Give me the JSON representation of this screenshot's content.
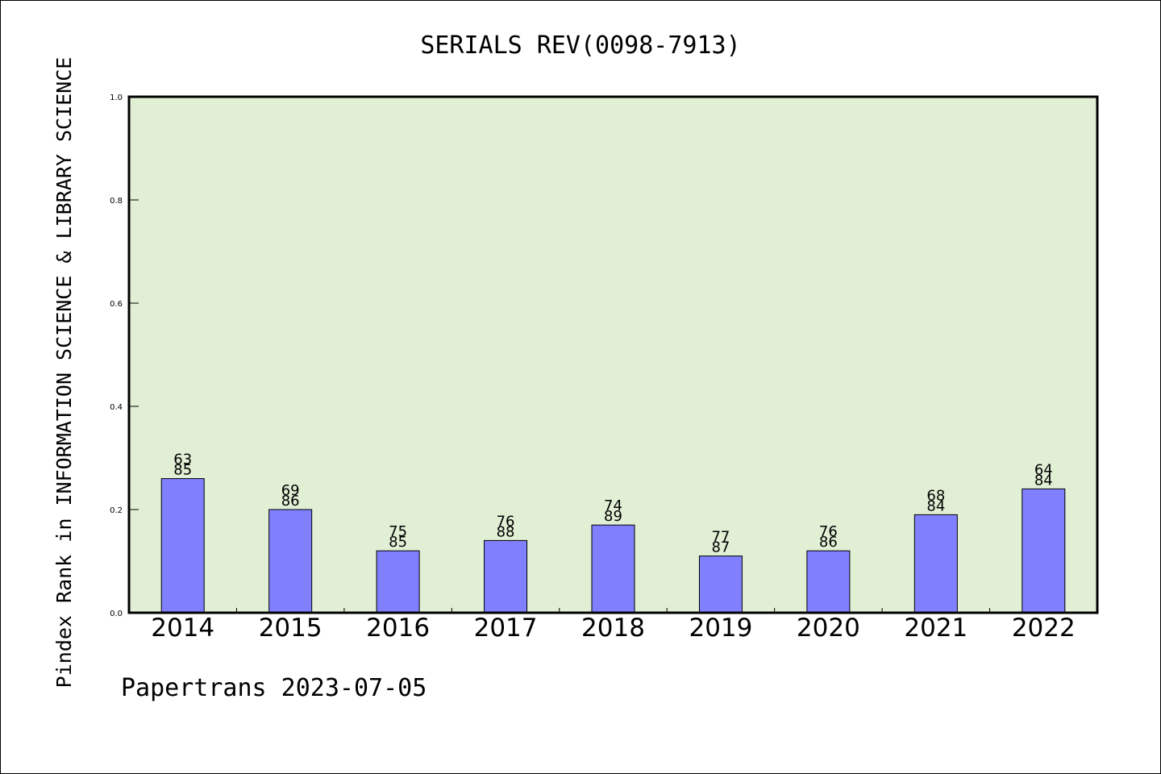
{
  "chart_data": {
    "type": "bar",
    "title": "SERIALS REV(0098-7913)",
    "ylabel": "Pindex Rank in INFORMATION SCIENCE & LIBRARY SCIENCE",
    "xlabel": "",
    "categories": [
      "2014",
      "2015",
      "2016",
      "2017",
      "2018",
      "2019",
      "2020",
      "2021",
      "2022"
    ],
    "values": [
      0.26,
      0.2,
      0.12,
      0.14,
      0.17,
      0.11,
      0.12,
      0.19,
      0.24
    ],
    "rank_labels": [
      "63",
      "69",
      "75",
      "76",
      "74",
      "77",
      "76",
      "68",
      "64"
    ],
    "total_labels": [
      "85",
      "86",
      "85",
      "88",
      "89",
      "87",
      "86",
      "84",
      "84"
    ],
    "ylim": [
      0,
      1.0
    ],
    "yticks": [
      "0.0",
      "0.2",
      "0.4",
      "0.6",
      "0.8",
      "1.0"
    ],
    "grid": false,
    "legend": "none",
    "colors": {
      "bar": "#8080ff",
      "plot_background": "#e1efd5",
      "axis": "#000000"
    }
  },
  "footer": {
    "text": "Papertrans 2023-07-05"
  }
}
